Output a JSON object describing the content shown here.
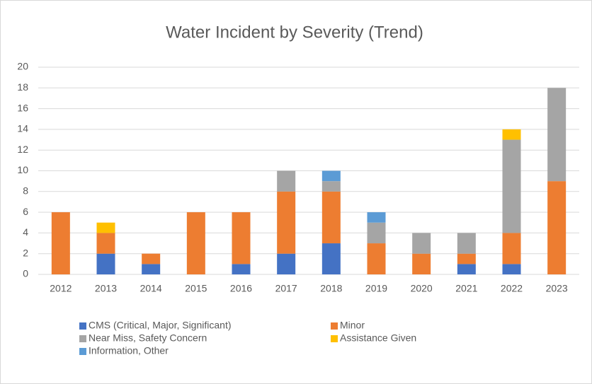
{
  "chart_data": {
    "type": "bar",
    "stacked": true,
    "title": "Water Incident by Severity (Trend)",
    "categories": [
      "2012",
      "2013",
      "2014",
      "2015",
      "2016",
      "2017",
      "2018",
      "2019",
      "2020",
      "2021",
      "2022",
      "2023"
    ],
    "series": [
      {
        "name": "CMS (Critical, Major, Significant)",
        "color": "#4472c4",
        "values": [
          0,
          2,
          1,
          0,
          1,
          2,
          3,
          0,
          0,
          1,
          1,
          0
        ]
      },
      {
        "name": "Minor",
        "color": "#ed7d31",
        "values": [
          6,
          2,
          1,
          6,
          5,
          6,
          5,
          3,
          2,
          1,
          3,
          9
        ]
      },
      {
        "name": "Near Miss, Safety Concern",
        "color": "#a5a5a5",
        "values": [
          0,
          0,
          0,
          0,
          0,
          2,
          1,
          2,
          2,
          2,
          9,
          9
        ]
      },
      {
        "name": "Assistance Given",
        "color": "#ffc000",
        "values": [
          0,
          1,
          0,
          0,
          0,
          0,
          0,
          0,
          0,
          0,
          1,
          0
        ]
      },
      {
        "name": "Information, Other",
        "color": "#5b9bd5",
        "values": [
          0,
          0,
          0,
          0,
          0,
          0,
          1,
          1,
          0,
          0,
          0,
          0
        ]
      }
    ],
    "ylim": [
      0,
      20
    ],
    "yticks": [
      0,
      2,
      4,
      6,
      8,
      10,
      12,
      14,
      16,
      18,
      20
    ],
    "grid": true,
    "legend": "bottom"
  }
}
